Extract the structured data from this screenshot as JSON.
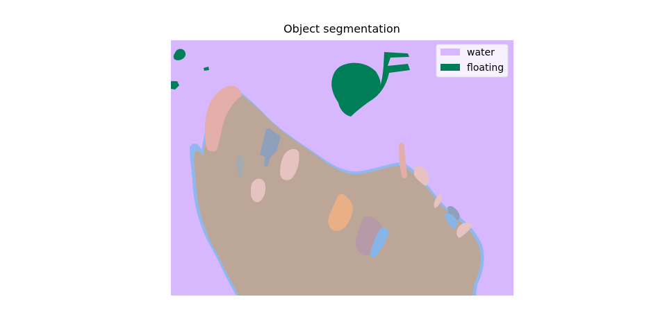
{
  "title": "Object segmentation",
  "legend": {
    "placement": "top-right",
    "items": [
      {
        "label": "water",
        "color": "#d7b8ff"
      },
      {
        "label": "floating",
        "color": "#007e58"
      }
    ]
  },
  "colors": {
    "water": "#d7b8ff",
    "floating": "#007e58",
    "main_object": "#bca698",
    "object_outline": "#90b8ee",
    "pink_region": "#e3aea9",
    "blue_gray_region": "#8ea0bb",
    "orange_region": "#e8b084",
    "mauve_region": "#b79aa8",
    "light_pink_region": "#e6c2c0",
    "light_blue_region": "#88b5e8",
    "gray_region": "#a4aab0"
  }
}
